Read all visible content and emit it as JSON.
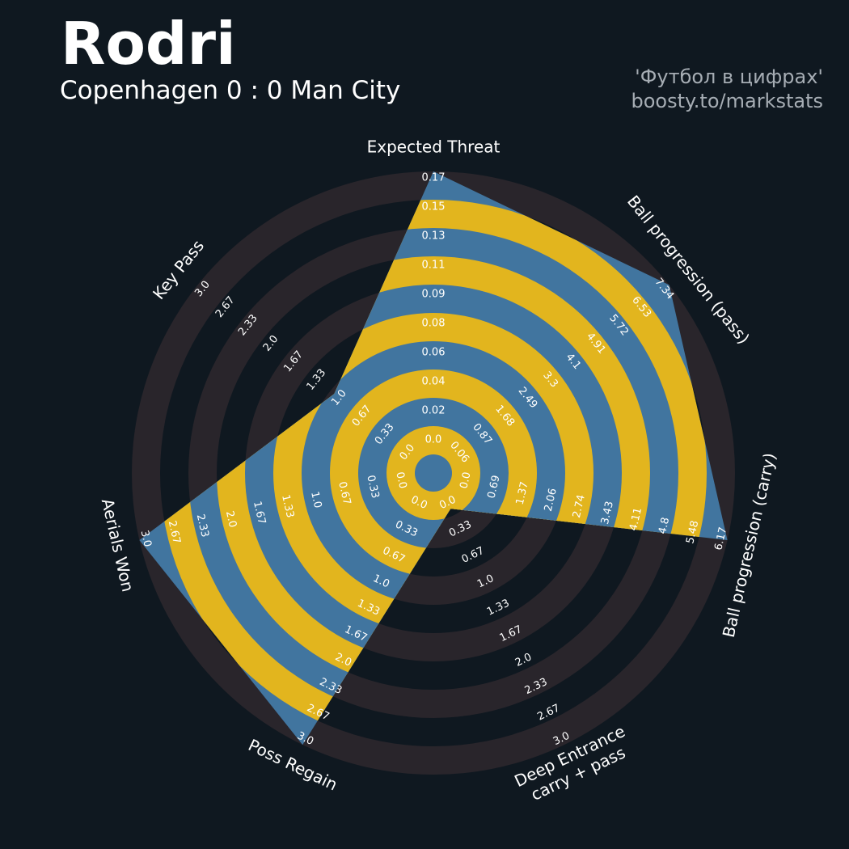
{
  "header": {
    "title": "Rodri",
    "subtitle": "Copenhagen 0 : 0 Man City",
    "credit_line1": "'Футбол в цифрах'",
    "credit_line2": "boosty.to/markstats"
  },
  "colors": {
    "background": "#0f1820",
    "ring_dark": "#29252b",
    "ring_gap": "#0f1820",
    "fill_blue": "#41759f",
    "fill_gold": "#e2b51e",
    "text": "#ffffff"
  },
  "chart_data": {
    "type": "radar",
    "title": "Rodri",
    "subtitle": "Copenhagen 0 : 0 Man City",
    "num_rings": 5,
    "metrics": [
      {
        "label": "Expected Threat",
        "value": 0.17,
        "min": 0.0,
        "max": 0.17,
        "ticks": [
          "0.0",
          "0.02",
          "0.04",
          "0.06",
          "0.08",
          "0.09",
          "0.11",
          "0.13",
          "0.15",
          "0.17"
        ]
      },
      {
        "label": "Ball progression (pass)",
        "value": 7.34,
        "min": 0.0,
        "max": 7.34,
        "ticks": [
          "0.06",
          "0.87",
          "1.68",
          "2.49",
          "3.3",
          "4.1",
          "4.91",
          "5.72",
          "6.53",
          "7.34"
        ]
      },
      {
        "label": "Ball progression (carry)",
        "value": 6.17,
        "min": 0.0,
        "max": 6.17,
        "ticks": [
          "0.0",
          "0.69",
          "1.37",
          "2.06",
          "2.74",
          "3.43",
          "4.11",
          "4.8",
          "5.48",
          "6.17"
        ]
      },
      {
        "label": "Deep Entrance\ncarry + pass",
        "value": 0.0,
        "min": 0.0,
        "max": 3.0,
        "ticks": [
          "0.0",
          "0.33",
          "0.67",
          "1.0",
          "1.33",
          "1.67",
          "2.0",
          "2.33",
          "2.67",
          "3.0"
        ]
      },
      {
        "label": "Poss Regain",
        "value": 3.0,
        "min": 0.0,
        "max": 3.0,
        "ticks": [
          "0.0",
          "0.33",
          "0.67",
          "1.0",
          "1.33",
          "1.67",
          "2.0",
          "2.33",
          "2.67",
          "3.0"
        ]
      },
      {
        "label": "Aerials Won",
        "value": 3.0,
        "min": 0.0,
        "max": 3.0,
        "ticks": [
          "0.0",
          "0.33",
          "0.67",
          "1.0",
          "1.33",
          "1.67",
          "2.0",
          "2.33",
          "2.67",
          "3.0"
        ]
      },
      {
        "label": "Key Pass",
        "value": 1.0,
        "min": 0.0,
        "max": 3.0,
        "ticks": [
          "0.0",
          "0.33",
          "0.67",
          "1.0",
          "1.33",
          "1.67",
          "2.0",
          "2.33",
          "2.67",
          "3.0"
        ]
      }
    ]
  }
}
